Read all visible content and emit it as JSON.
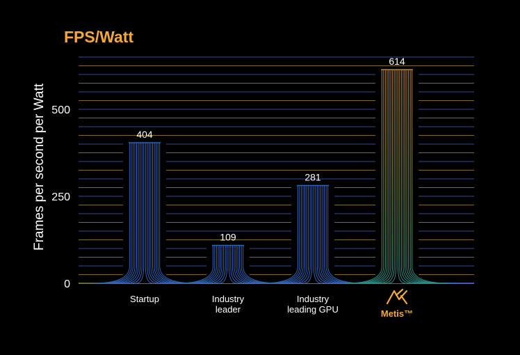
{
  "chart_data": {
    "type": "bar",
    "title": "FPS/Watt",
    "ylabel": "Frames per second per Watt",
    "xlabel": "",
    "ylim": [
      0,
      650
    ],
    "yticks": [
      0,
      250,
      500
    ],
    "grid": true,
    "categories": [
      {
        "lines": [
          "Startup"
        ]
      },
      {
        "lines": [
          "Industry",
          "leader"
        ]
      },
      {
        "lines": [
          "Industry",
          "leading GPU"
        ]
      },
      {
        "lines": [
          "Metis™"
        ],
        "logo": "axelera-logo-icon"
      }
    ],
    "values": [
      404,
      109,
      281,
      614
    ],
    "value_labels": [
      "404",
      "109",
      "281",
      "614"
    ],
    "colors": {
      "bar": "#2f63b8",
      "highlight_top": "#b8862a",
      "highlight_bottom": "#2a8f8a",
      "brand": "#f5a83a",
      "grid_warm": "#9a7a2a",
      "grid_cool": "#3a5ab0"
    }
  }
}
